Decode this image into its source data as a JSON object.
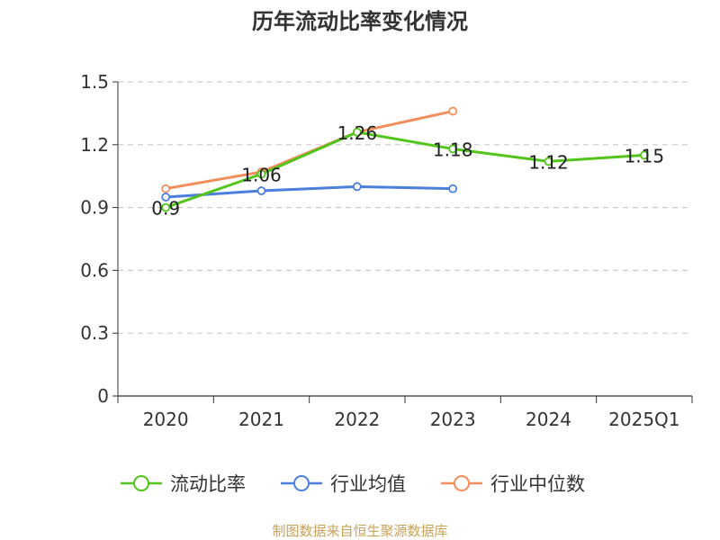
{
  "chart_data": {
    "type": "line",
    "title": "历年流动比率变化情况",
    "categories": [
      "2020",
      "2021",
      "2022",
      "2023",
      "2024",
      "2025Q1"
    ],
    "y_ticks": [
      "0",
      "0.3",
      "0.6",
      "0.9",
      "1.2",
      "1.5"
    ],
    "ylim": [
      0,
      1.5
    ],
    "grid": "horizontal dashed",
    "legend_position": "bottom",
    "series": [
      {
        "name": "流动比率",
        "color": "#52c41a",
        "values": [
          0.9,
          1.06,
          1.26,
          1.18,
          1.12,
          1.15
        ],
        "labels": [
          "0.9",
          "1.06",
          "1.26",
          "1.18",
          "1.12",
          "1.15"
        ]
      },
      {
        "name": "行业均值",
        "color": "#4a7fdc",
        "values": [
          0.95,
          0.98,
          1.0,
          0.99,
          null,
          null
        ]
      },
      {
        "name": "行业中位数",
        "color": "#f28e5b",
        "values": [
          0.99,
          1.07,
          1.26,
          1.36,
          null,
          null
        ]
      }
    ]
  },
  "source_note": "制图数据来自恒生聚源数据库"
}
